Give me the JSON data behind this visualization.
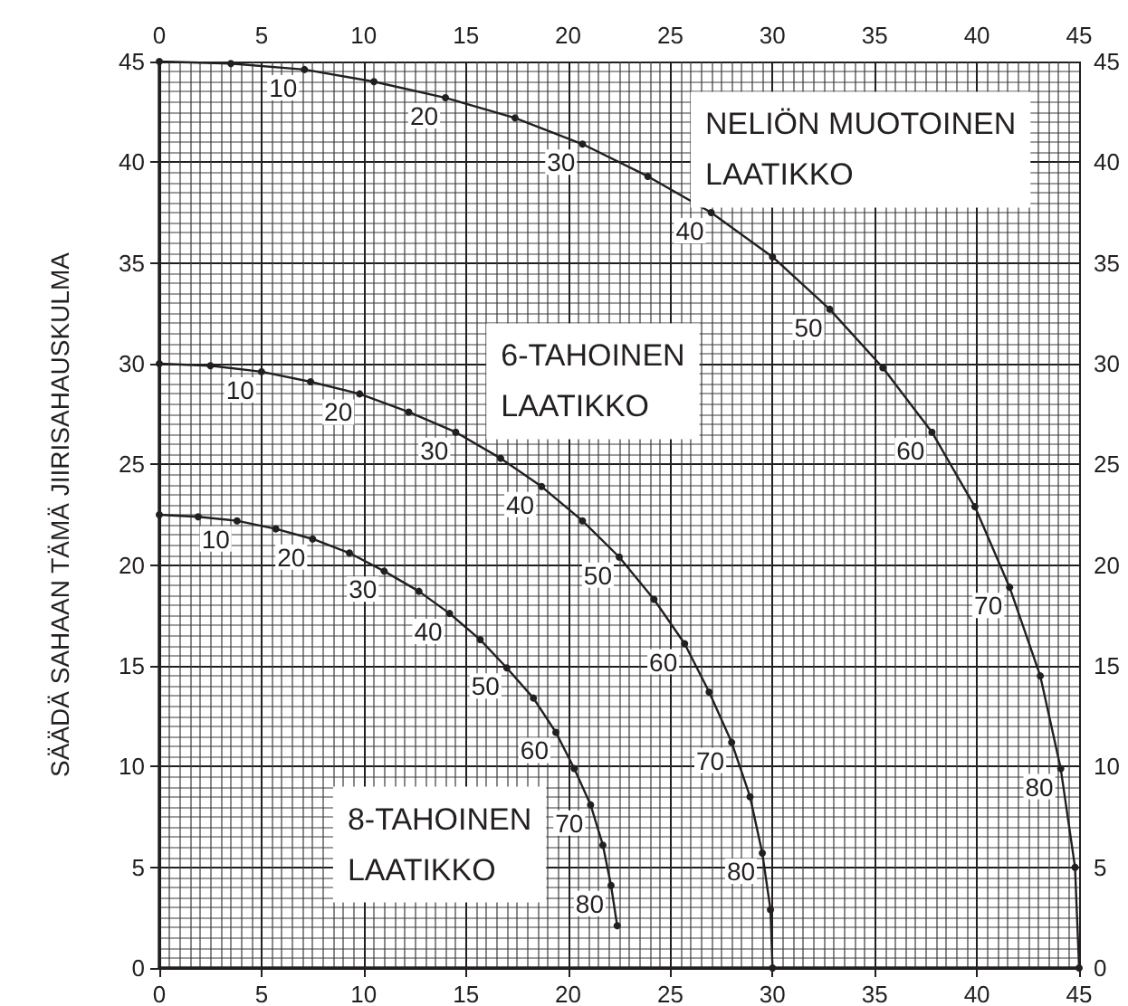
{
  "chart_data": {
    "type": "line",
    "ylabel": "SÄÄDÄ SAHAAN TÄMÄ JIIRISAHAUSKULMA",
    "xlim": [
      0,
      45
    ],
    "xticks": [
      0,
      5,
      10,
      15,
      20,
      25,
      30,
      35,
      40,
      45
    ],
    "ylim": [
      0,
      45
    ],
    "yticks": [
      0,
      5,
      10,
      15,
      20,
      25,
      30,
      35,
      40,
      45
    ],
    "x2lim": [
      0,
      45
    ],
    "x2ticks": [
      0,
      5,
      10,
      15,
      20,
      25,
      30,
      35,
      40,
      45
    ],
    "y2lim": [
      0,
      45
    ],
    "y2ticks": [
      0,
      5,
      10,
      15,
      20,
      25,
      30,
      35,
      40,
      45
    ],
    "grid": true,
    "legend": false,
    "marker": "circle",
    "line_style": "solid",
    "series": [
      {
        "name": "NELIÖN MUOTOINEN LAATIKKO",
        "color": "#231f20",
        "x": [
          0,
          3.5,
          7.1,
          10.5,
          14.0,
          17.4,
          20.7,
          23.9,
          27.0,
          30.0,
          32.8,
          35.4,
          37.8,
          39.9,
          41.6,
          43.1,
          44.1,
          44.8,
          45.0
        ],
        "values": [
          45,
          44.9,
          44.6,
          44.0,
          43.2,
          42.2,
          40.9,
          39.3,
          37.5,
          35.3,
          32.7,
          29.8,
          26.6,
          22.9,
          18.9,
          14.5,
          9.9,
          5.0,
          0
        ]
      },
      {
        "name": "6-TAHOINEN LAATIKKO",
        "color": "#231f20",
        "x": [
          0,
          2.5,
          5.0,
          7.4,
          9.8,
          12.2,
          14.5,
          16.7,
          18.7,
          20.7,
          22.5,
          24.2,
          25.7,
          26.9,
          28.0,
          28.9,
          29.5,
          29.9,
          30.0
        ],
        "values": [
          30.0,
          29.9,
          29.6,
          29.1,
          28.5,
          27.6,
          26.6,
          25.3,
          23.9,
          22.2,
          20.4,
          18.3,
          16.1,
          13.7,
          11.2,
          8.5,
          5.7,
          2.9,
          0
        ]
      },
      {
        "name": "8-TAHOINEN LAATIKKO",
        "color": "#231f20",
        "x": [
          0,
          1.9,
          3.8,
          5.7,
          7.5,
          9.3,
          11.0,
          12.7,
          14.2,
          15.7,
          17.0,
          18.3,
          19.4,
          20.3,
          21.1,
          21.7,
          22.1,
          22.4
        ],
        "values": [
          22.5,
          22.4,
          22.2,
          21.8,
          21.3,
          20.6,
          19.7,
          18.7,
          17.6,
          16.3,
          14.9,
          13.4,
          11.7,
          9.9,
          8.1,
          6.1,
          4.1,
          2.1
        ]
      }
    ],
    "annotations": [
      {
        "text": "10",
        "x": 7.1,
        "y": 44.6
      },
      {
        "text": "20",
        "x": 14.0,
        "y": 43.2
      },
      {
        "text": "30",
        "x": 20.7,
        "y": 40.9
      },
      {
        "text": "40",
        "x": 27.0,
        "y": 37.5
      },
      {
        "text": "50",
        "x": 32.8,
        "y": 32.7
      },
      {
        "text": "60",
        "x": 37.8,
        "y": 26.6
      },
      {
        "text": "70",
        "x": 41.6,
        "y": 18.9
      },
      {
        "text": "80",
        "x": 44.1,
        "y": 9.9
      },
      {
        "text": "10",
        "x": 5.0,
        "y": 29.6
      },
      {
        "text": "20",
        "x": 9.8,
        "y": 28.5
      },
      {
        "text": "30",
        "x": 14.5,
        "y": 26.6
      },
      {
        "text": "40",
        "x": 18.7,
        "y": 23.9
      },
      {
        "text": "50",
        "x": 22.5,
        "y": 20.4
      },
      {
        "text": "60",
        "x": 25.7,
        "y": 16.1
      },
      {
        "text": "70",
        "x": 28.0,
        "y": 11.2
      },
      {
        "text": "80",
        "x": 29.5,
        "y": 5.7
      },
      {
        "text": "10",
        "x": 3.8,
        "y": 22.2
      },
      {
        "text": "20",
        "x": 7.5,
        "y": 21.3
      },
      {
        "text": "30",
        "x": 11.0,
        "y": 19.7
      },
      {
        "text": "40",
        "x": 14.2,
        "y": 17.6
      },
      {
        "text": "50",
        "x": 17.0,
        "y": 14.9
      },
      {
        "text": "60",
        "x": 19.4,
        "y": 11.7
      },
      {
        "text": "70",
        "x": 21.1,
        "y": 8.1
      },
      {
        "text": "80",
        "x": 22.1,
        "y": 4.1
      }
    ]
  }
}
